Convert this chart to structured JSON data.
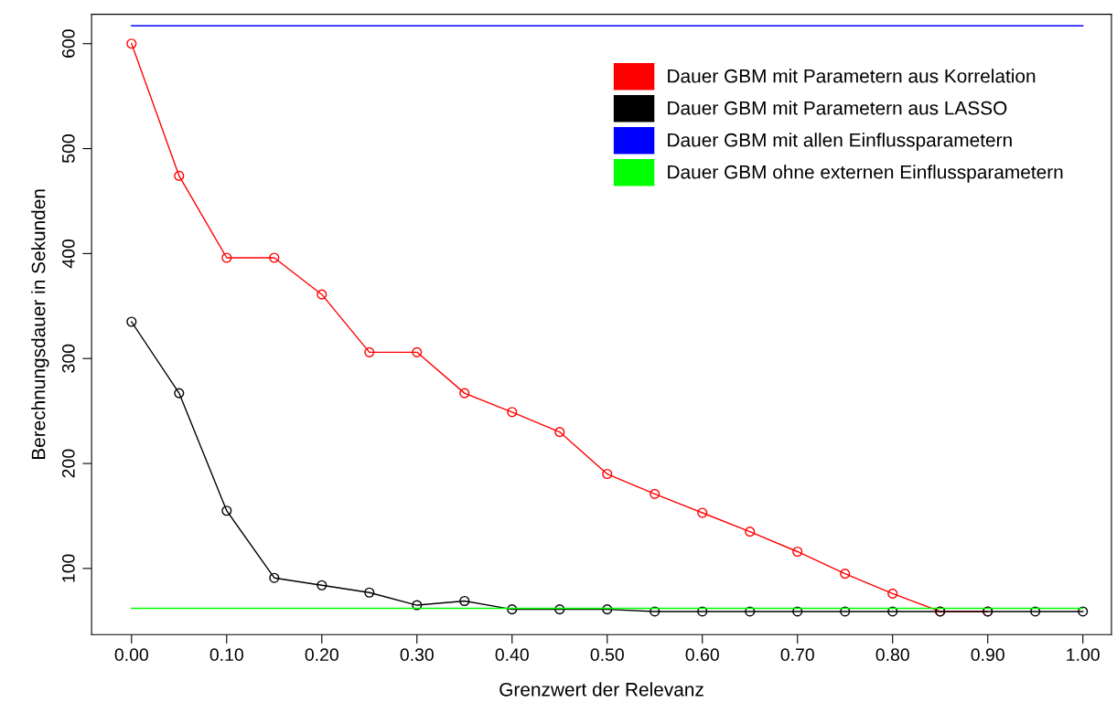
{
  "chart_data": {
    "type": "line",
    "xlabel": "Grenzwert der Relevanz",
    "ylabel": "Berechnungsdauer in Sekunden",
    "x": [
      0,
      0.05,
      0.1,
      0.15,
      0.2,
      0.25,
      0.3,
      0.35,
      0.4,
      0.45,
      0.5,
      0.55,
      0.6,
      0.65,
      0.7,
      0.75,
      0.8,
      0.85,
      0.9,
      0.95,
      1.0
    ],
    "series": [
      {
        "name": "Dauer GBM mit Parametern aus Korrelation",
        "color": "#ff0000",
        "values": [
          600,
          474,
          396,
          396,
          361,
          306,
          306,
          267,
          249,
          230,
          190,
          171,
          153,
          135,
          116,
          95,
          76,
          59,
          59,
          null,
          null
        ]
      },
      {
        "name": "Dauer GBM mit Parametern aus LASSO",
        "color": "#000000",
        "values": [
          335,
          267,
          155,
          91,
          84,
          77,
          65,
          69,
          61,
          61,
          61,
          59,
          59,
          59,
          59,
          59,
          59,
          59,
          59,
          59,
          59
        ]
      },
      {
        "name": "Dauer GBM mit allen Einflussparametern",
        "color": "#0000ff",
        "marker": "none",
        "values": [
          617,
          617,
          617,
          617,
          617,
          617,
          617,
          617,
          617,
          617,
          617,
          617,
          617,
          617,
          617,
          617,
          617,
          617,
          617,
          617,
          617
        ]
      },
      {
        "name": "Dauer GBM ohne externen Einflussparametern",
        "color": "#00ff00",
        "marker": "none",
        "values": [
          62,
          62,
          62,
          62,
          62,
          62,
          62,
          62,
          62,
          62,
          62,
          62,
          62,
          62,
          62,
          62,
          62,
          62,
          62,
          62,
          62
        ]
      }
    ],
    "marker": "circle",
    "line_style": "solid",
    "grid": false,
    "legend": "top right",
    "xlim": [
      -0.042,
      1.03
    ],
    "ylim": [
      37,
      628
    ],
    "xticks": [
      {
        "value": 0,
        "label": "0.00"
      },
      {
        "value": 0.1,
        "label": "0.10"
      },
      {
        "value": 0.2,
        "label": "0.20"
      },
      {
        "value": 0.3,
        "label": "0.30"
      },
      {
        "value": 0.4,
        "label": "0.40"
      },
      {
        "value": 0.5,
        "label": "0.50"
      },
      {
        "value": 0.6,
        "label": "0.60"
      },
      {
        "value": 0.7,
        "label": "0.70"
      },
      {
        "value": 0.8,
        "label": "0.80"
      },
      {
        "value": 0.9,
        "label": "0.90"
      },
      {
        "value": 1.0,
        "label": "1.00"
      }
    ],
    "yticks": [
      100,
      200,
      300,
      400,
      500,
      600
    ]
  }
}
